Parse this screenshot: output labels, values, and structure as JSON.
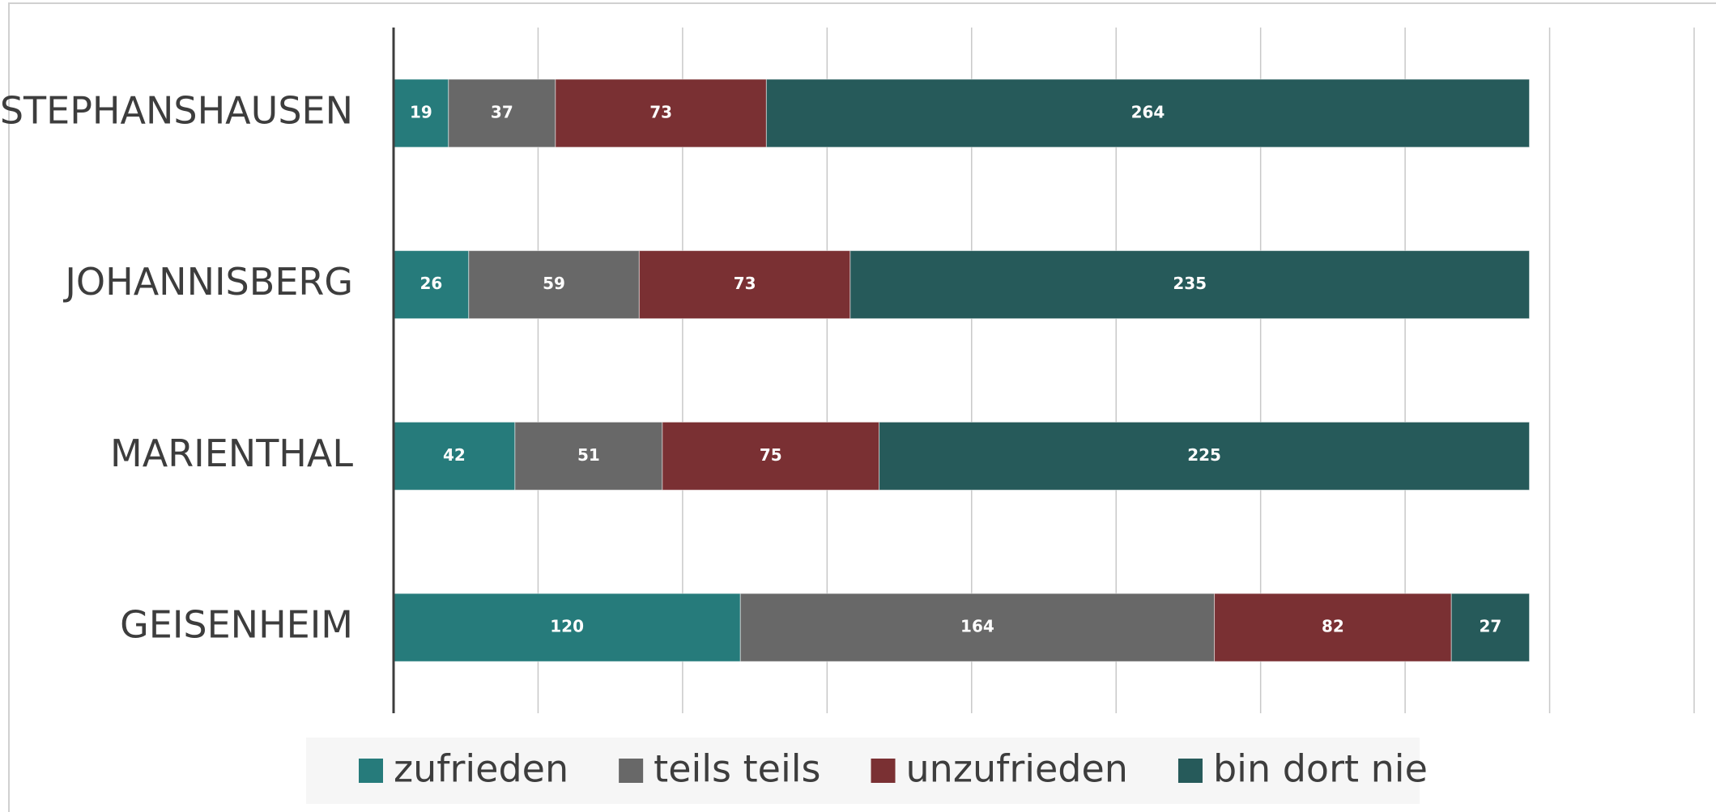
{
  "chart_data": {
    "type": "stacked_barh",
    "categories": [
      "STEPHANSHAUSEN",
      "JOHANNISBERG",
      "MARIENTHAL",
      "GEISENHEIM"
    ],
    "series": [
      {
        "name": "zufrieden",
        "color": "#267b7b",
        "values": [
          19,
          26,
          42,
          120
        ]
      },
      {
        "name": "teils teils",
        "color": "#686868",
        "values": [
          37,
          59,
          51,
          164
        ]
      },
      {
        "name": "unzufrieden",
        "color": "#7a3033",
        "values": [
          73,
          73,
          75,
          82
        ]
      },
      {
        "name": "bin dort nie",
        "color": "#265a5a",
        "values": [
          264,
          235,
          225,
          27
        ]
      }
    ],
    "xlim": [
      0,
      450
    ],
    "xticks": [
      0,
      50,
      100,
      150,
      200,
      250,
      300,
      350,
      400,
      450
    ],
    "grid": true,
    "legend": "bottom"
  }
}
